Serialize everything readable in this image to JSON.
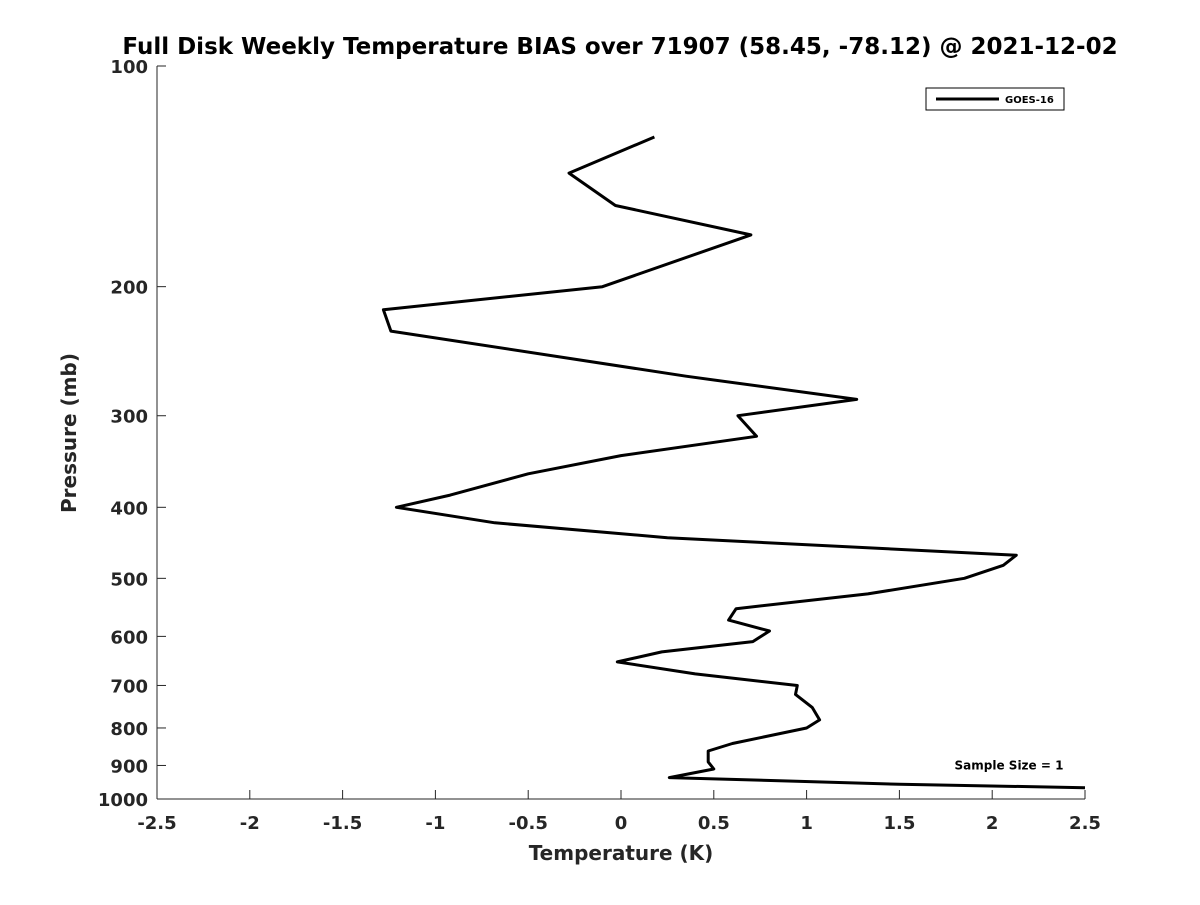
{
  "chart_data": {
    "type": "line",
    "title": "Full Disk Weekly Temperature BIAS over 71907 (58.45, -78.12) @ 2021-12-02",
    "xlabel": "Temperature (K)",
    "ylabel": "Pressure (mb)",
    "xlim": [
      -2.5,
      2.5
    ],
    "ylim": [
      100,
      1000
    ],
    "y_scale": "log",
    "y_reversed": true,
    "x_ticks": [
      -2.5,
      -2,
      -1.5,
      -1,
      -0.5,
      0,
      0.5,
      1,
      1.5,
      2,
      2.5
    ],
    "x_tick_labels": [
      "-2.5",
      "-2",
      "-1.5",
      "-1",
      "-0.5",
      "0",
      "0.5",
      "1",
      "1.5",
      "2",
      "2.5"
    ],
    "y_ticks": [
      100,
      200,
      300,
      400,
      500,
      600,
      700,
      800,
      900,
      1000
    ],
    "y_tick_labels": [
      "100",
      "200",
      "300",
      "400",
      "500",
      "600",
      "700",
      "800",
      "900",
      "1000"
    ],
    "grid": false,
    "legend_position": "top-right",
    "series": [
      {
        "name": "GOES-16",
        "color": "#000000",
        "points": [
          {
            "x": 0.18,
            "p": 125
          },
          {
            "x": -0.28,
            "p": 140
          },
          {
            "x": -0.03,
            "p": 155
          },
          {
            "x": 0.7,
            "p": 170
          },
          {
            "x": -0.1,
            "p": 200
          },
          {
            "x": -1.28,
            "p": 215
          },
          {
            "x": -1.24,
            "p": 230
          },
          {
            "x": 0.35,
            "p": 265
          },
          {
            "x": 1.27,
            "p": 285
          },
          {
            "x": 0.63,
            "p": 300
          },
          {
            "x": 0.73,
            "p": 320
          },
          {
            "x": 0.0,
            "p": 340
          },
          {
            "x": -0.5,
            "p": 360
          },
          {
            "x": -0.92,
            "p": 385
          },
          {
            "x": -1.21,
            "p": 400
          },
          {
            "x": -0.68,
            "p": 420
          },
          {
            "x": 0.25,
            "p": 440
          },
          {
            "x": 2.13,
            "p": 465
          },
          {
            "x": 2.06,
            "p": 480
          },
          {
            "x": 1.85,
            "p": 500
          },
          {
            "x": 1.33,
            "p": 525
          },
          {
            "x": 0.62,
            "p": 550
          },
          {
            "x": 0.58,
            "p": 570
          },
          {
            "x": 0.8,
            "p": 590
          },
          {
            "x": 0.71,
            "p": 610
          },
          {
            "x": 0.22,
            "p": 630
          },
          {
            "x": -0.02,
            "p": 650
          },
          {
            "x": 0.4,
            "p": 675
          },
          {
            "x": 0.95,
            "p": 700
          },
          {
            "x": 0.94,
            "p": 720
          },
          {
            "x": 1.03,
            "p": 750
          },
          {
            "x": 1.07,
            "p": 780
          },
          {
            "x": 1.0,
            "p": 800
          },
          {
            "x": 0.6,
            "p": 840
          },
          {
            "x": 0.47,
            "p": 860
          },
          {
            "x": 0.47,
            "p": 890
          },
          {
            "x": 0.5,
            "p": 910
          },
          {
            "x": 0.26,
            "p": 935
          },
          {
            "x": 0.9,
            "p": 945
          },
          {
            "x": 1.5,
            "p": 955
          },
          {
            "x": 2.5,
            "p": 965
          }
        ]
      }
    ],
    "annotations": [
      {
        "text": "Sample Size = 1",
        "x": 2.4,
        "p": 900
      }
    ]
  }
}
